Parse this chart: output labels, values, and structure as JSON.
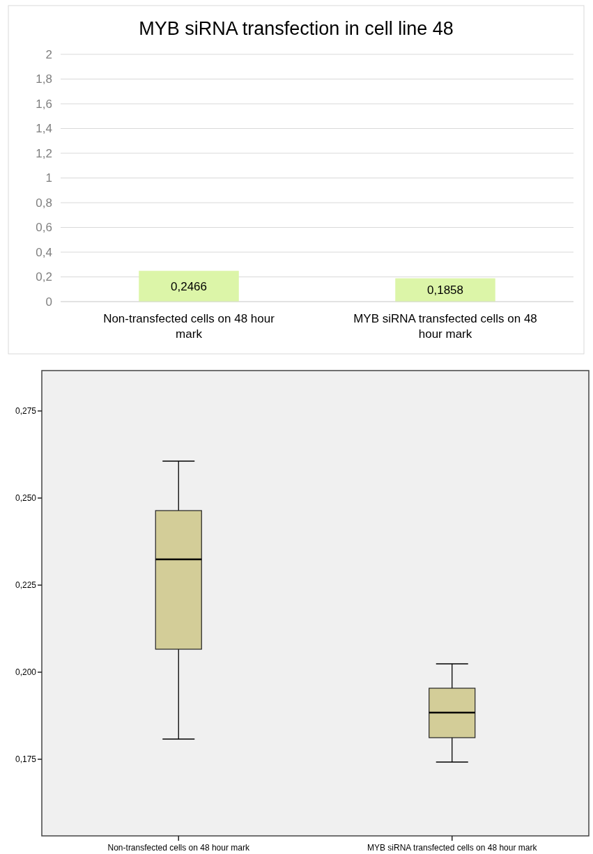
{
  "chart_data": [
    {
      "type": "bar",
      "title": "MYB siRNA transfection in cell line 48",
      "categories": [
        "Non-transfected cells on 48 hour mark",
        "MYB siRNA transfected cells on 48 hour mark"
      ],
      "values": [
        0.2466,
        0.1858
      ],
      "color": "#dcf5a8",
      "value_labels": [
        "0,2466",
        "0,1858"
      ],
      "ylim": [
        0,
        2
      ],
      "yticks": [
        0,
        {
          "value": 0.2,
          "label": "0,2"
        },
        {
          "value": 0.4,
          "label": "0,4"
        },
        {
          "value": 0.6,
          "label": "0,6"
        },
        {
          "value": 0.8,
          "label": "0,8"
        },
        1,
        {
          "value": 1.2,
          "label": "1,2"
        },
        {
          "value": 1.4,
          "label": "1,4"
        },
        {
          "value": 1.6,
          "label": "1,6"
        },
        {
          "value": 1.8,
          "label": "1,8"
        },
        2
      ],
      "grid": "y"
    },
    {
      "type": "box",
      "categories": [
        "Non-transfected cells on 48 hour mark",
        "MYB siRNA transfected cells on 48 hour mark"
      ],
      "color": "#d3cd98",
      "boxes": [
        {
          "low": 0.1808,
          "q1": 0.2066,
          "median": 0.2324,
          "q3": 0.2464,
          "high": 0.2606
        },
        {
          "low": 0.1742,
          "q1": 0.1812,
          "median": 0.1884,
          "q3": 0.1954,
          "high": 0.2024
        }
      ],
      "ylim": [
        0.153,
        0.2866
      ],
      "yticks": [
        {
          "value": 0.175,
          "label": "0,175"
        },
        {
          "value": 0.2,
          "label": "0,200"
        },
        {
          "value": 0.225,
          "label": "0,225"
        },
        {
          "value": 0.25,
          "label": "0,250"
        },
        {
          "value": 0.275,
          "label": "0,275"
        }
      ],
      "grid": false
    }
  ]
}
